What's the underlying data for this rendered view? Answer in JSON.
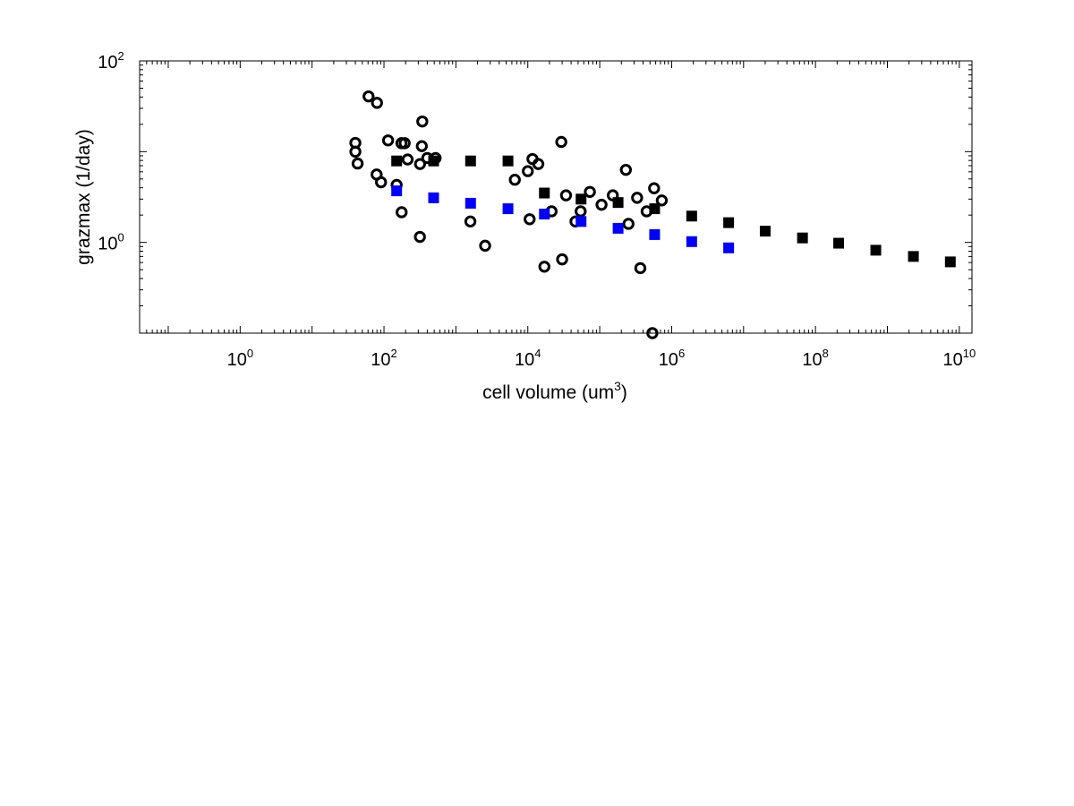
{
  "chart_data": {
    "type": "scatter",
    "xscale": "log",
    "yscale": "log",
    "xlabel": "cell volume (um",
    "xlabel_sup": "3",
    "xlabel_end": ")",
    "ylabel": "grazmax (1/day)",
    "xlim": [
      0.04,
      15000000000.0
    ],
    "ylim": [
      0.1,
      100
    ],
    "grid": false,
    "x_ticks": [
      {
        "value": 1,
        "base": "10",
        "exp": "0"
      },
      {
        "value": 100,
        "base": "10",
        "exp": "2"
      },
      {
        "value": 10000,
        "base": "10",
        "exp": "4"
      },
      {
        "value": 1000000,
        "base": "10",
        "exp": "6"
      },
      {
        "value": 100000000,
        "base": "10",
        "exp": "8"
      },
      {
        "value": 10000000000,
        "base": "10",
        "exp": "10"
      }
    ],
    "y_ticks": [
      {
        "value": 1,
        "base": "10",
        "exp": "0"
      },
      {
        "value": 100,
        "base": "10",
        "exp": "2"
      }
    ],
    "series": [
      {
        "marker": "open-circle",
        "color": "#000000",
        "points": [
          [
            61,
            40.6
          ],
          [
            80,
            34.5
          ],
          [
            40,
            12.5
          ],
          [
            40,
            10
          ],
          [
            43,
            7.4
          ],
          [
            79,
            5.6
          ],
          [
            91,
            4.6
          ],
          [
            150,
            4.3
          ],
          [
            114,
            13.3
          ],
          [
            175,
            12.4
          ],
          [
            194,
            12.4
          ],
          [
            213,
            8.2
          ],
          [
            341,
            21.5
          ],
          [
            336,
            11.5
          ],
          [
            317,
            7.3
          ],
          [
            400,
            8.5
          ],
          [
            522,
            8.5
          ],
          [
            176,
            2.15
          ],
          [
            316,
            1.15
          ],
          [
            1590,
            1.7
          ],
          [
            2550,
            0.92
          ],
          [
            11600,
            8.3
          ],
          [
            14000,
            7.3
          ],
          [
            10000,
            6.1
          ],
          [
            6600,
            4.9
          ],
          [
            10600,
            1.8
          ],
          [
            17000,
            0.54
          ],
          [
            21400,
            2.2
          ],
          [
            29200,
            12.8
          ],
          [
            30000,
            0.65
          ],
          [
            34000,
            3.3
          ],
          [
            46000,
            1.7
          ],
          [
            54300,
            2.2
          ],
          [
            73000,
            3.6
          ],
          [
            106000,
            2.6
          ],
          [
            152000,
            3.3
          ],
          [
            251000,
            1.6
          ],
          [
            231000,
            6.3
          ],
          [
            331000,
            3.1
          ],
          [
            367000,
            0.52
          ],
          [
            449000,
            2.2
          ],
          [
            540000,
            0.1
          ],
          [
            570000,
            3.95
          ],
          [
            729000,
            2.9
          ]
        ]
      },
      {
        "marker": "filled-square",
        "color": "#000000",
        "points": [
          [
            150,
            7.9
          ],
          [
            490,
            7.9
          ],
          [
            1600,
            7.9
          ],
          [
            5300,
            7.9
          ],
          [
            17000,
            3.5
          ],
          [
            55000,
            3.0
          ],
          [
            180000,
            2.75
          ],
          [
            580000,
            2.35
          ],
          [
            1900000,
            1.95
          ],
          [
            6200000,
            1.65
          ],
          [
            20000000,
            1.33
          ],
          [
            66000000,
            1.12
          ],
          [
            210000000,
            0.98
          ],
          [
            690000000,
            0.82
          ],
          [
            2300000000,
            0.7
          ],
          [
            7500000000,
            0.61
          ]
        ]
      },
      {
        "marker": "filled-square",
        "color": "#0000ff",
        "points": [
          [
            150,
            3.7
          ],
          [
            490,
            3.1
          ],
          [
            1600,
            2.7
          ],
          [
            5300,
            2.35
          ],
          [
            17000,
            2.05
          ],
          [
            55000,
            1.7
          ],
          [
            180000,
            1.43
          ],
          [
            580000,
            1.22
          ],
          [
            1900000,
            1.02
          ],
          [
            6200000,
            0.87
          ]
        ]
      }
    ]
  }
}
